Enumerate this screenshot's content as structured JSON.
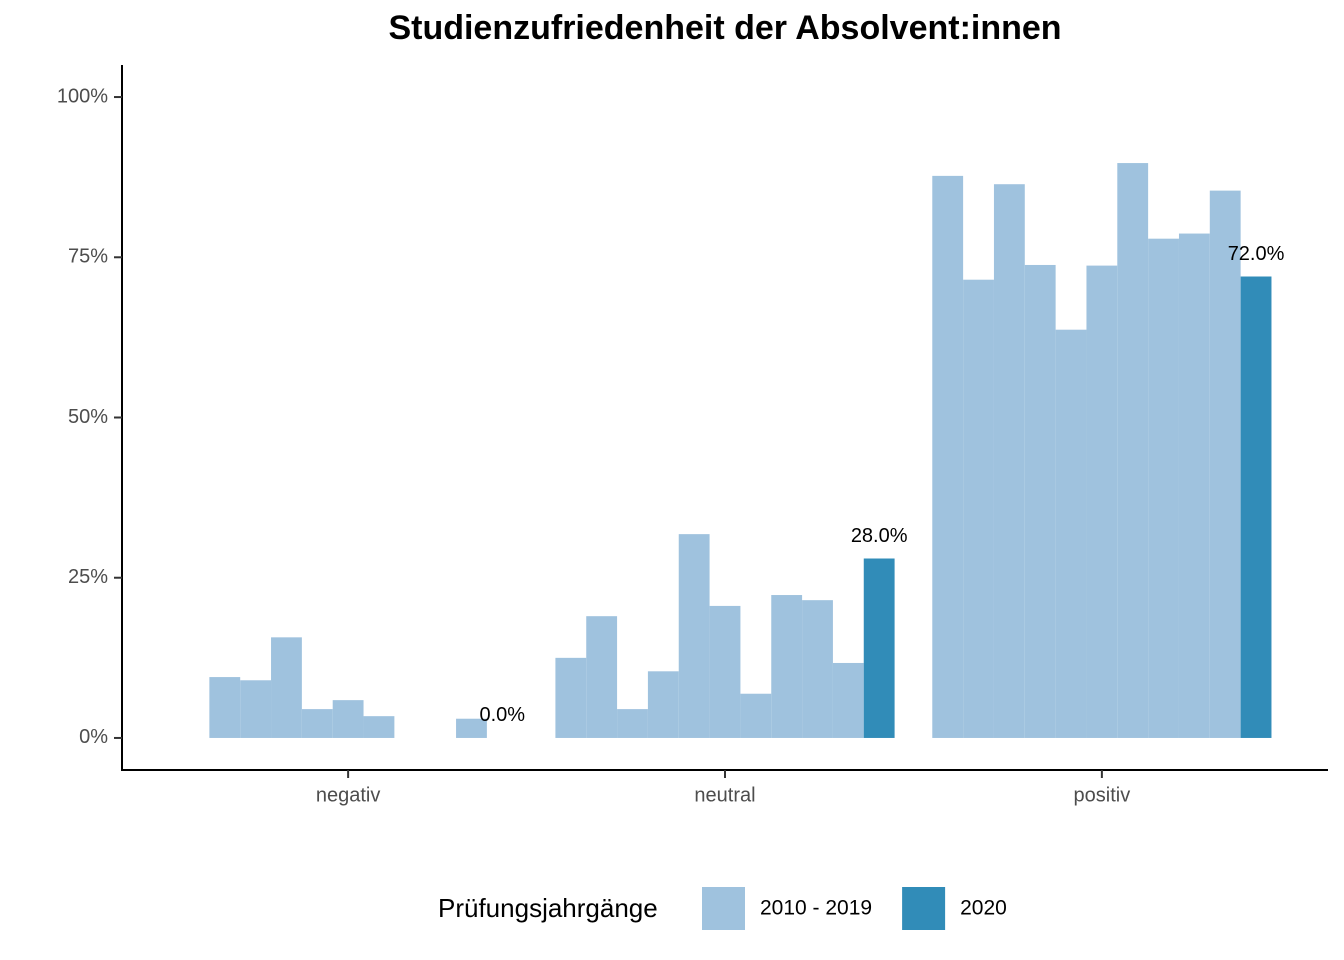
{
  "chart_data": {
    "type": "bar",
    "title": "Studienzufriedenheit der Absolvent:innen",
    "categories": [
      "negativ",
      "neutral",
      "positiv"
    ],
    "legend_title": "Prüfungsjahrgänge",
    "legend_position": "bottom",
    "series": [
      {
        "name": "2010 - 2019",
        "color": "#9fc2de",
        "values": [
          [
            null,
            9.5,
            9.0,
            15.7,
            4.5,
            5.9,
            3.4,
            null,
            null,
            3.0
          ],
          [
            12.5,
            19.0,
            4.5,
            10.4,
            31.8,
            20.6,
            6.9,
            22.3,
            21.5,
            11.7
          ],
          [
            87.7,
            71.5,
            86.4,
            73.8,
            63.7,
            73.7,
            89.7,
            77.9,
            78.7,
            85.4
          ]
        ]
      },
      {
        "name": "2020",
        "color": "#318cb8",
        "values": [
          0,
          28,
          72
        ],
        "value_labels": [
          "0.0%",
          "28.0%",
          "72.0%"
        ]
      }
    ],
    "ylim": [
      -5,
      105
    ],
    "yticks": [
      {
        "value": 0,
        "label": "0%"
      },
      {
        "value": 25,
        "label": "25%"
      },
      {
        "value": 50,
        "label": "50%"
      },
      {
        "value": 75,
        "label": "75%"
      },
      {
        "value": 100,
        "label": "100%"
      }
    ],
    "grid": false
  }
}
